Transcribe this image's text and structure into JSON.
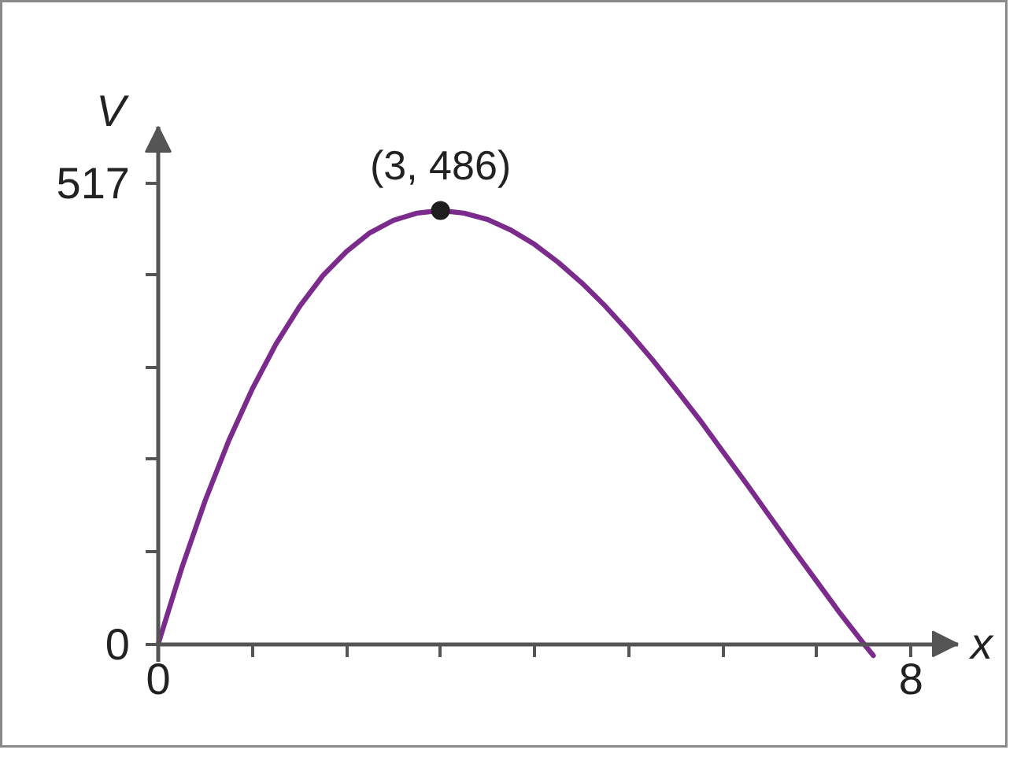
{
  "chart_data": {
    "type": "line",
    "xlabel": "x",
    "ylabel": "V",
    "xlim": [
      0,
      8.5
    ],
    "ylim": [
      -20,
      580
    ],
    "xticks": [
      0,
      {
        "value": 1,
        "label": null
      },
      {
        "value": 2,
        "label": null
      },
      {
        "value": 3,
        "label": null
      },
      {
        "value": 4,
        "label": null
      },
      {
        "value": 5,
        "label": null
      },
      {
        "value": 6,
        "label": null
      },
      {
        "value": 7,
        "label": null
      },
      8
    ],
    "yticks": [
      0,
      {
        "value": 103.4,
        "label": null
      },
      {
        "value": 206.8,
        "label": null
      },
      {
        "value": 310.2,
        "label": null
      },
      {
        "value": 413.6,
        "label": null
      },
      517
    ],
    "grid": false,
    "series": [
      {
        "color": "#7b2b8c",
        "x": [
          0,
          0.25,
          0.5,
          0.75,
          1,
          1.25,
          1.5,
          1.75,
          2,
          2.25,
          2.5,
          2.75,
          3,
          3.25,
          3.5,
          3.75,
          4,
          4.25,
          4.5,
          4.75,
          5,
          5.25,
          5.5,
          5.75,
          6,
          6.25,
          6.5,
          6.75,
          7,
          7.25,
          7.5,
          7.6
        ],
        "values": [
          0,
          85,
          161,
          228,
          286,
          336,
          378,
          413,
          440,
          461,
          475,
          483,
          486,
          483,
          476,
          464,
          448,
          428,
          405,
          379,
          350,
          319,
          286,
          252,
          216,
          180,
          143,
          106,
          70,
          34,
          0,
          -13
        ]
      },
      {
        "type": "scatter",
        "color": "#1e1e1e",
        "marker": "circle",
        "x": [
          3
        ],
        "values": [
          486
        ]
      }
    ],
    "annotations": [
      {
        "text": "(3, 486)",
        "x": 3,
        "y": 486
      }
    ]
  }
}
